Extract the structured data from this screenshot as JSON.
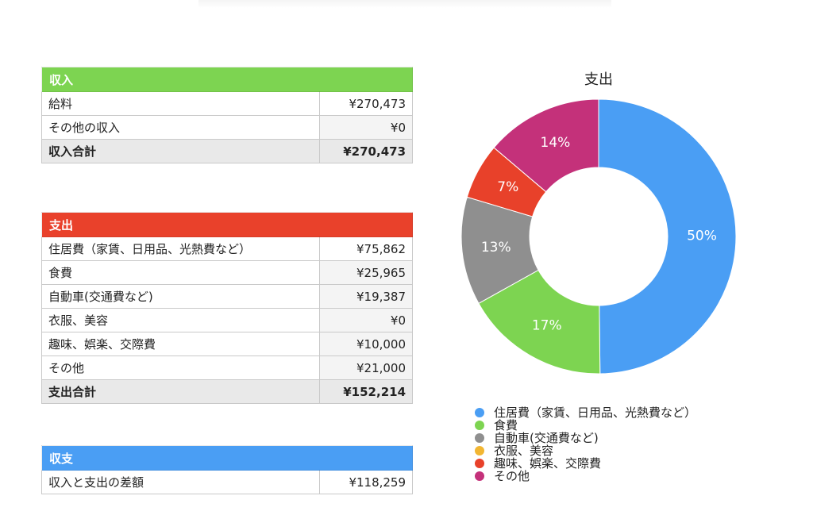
{
  "income": {
    "header": "収入",
    "rows": [
      {
        "label": "給料",
        "amount": "¥270,473"
      },
      {
        "label": "その他の収入",
        "amount": "¥0"
      }
    ],
    "total": {
      "label": "収入合計",
      "amount": "¥270,473"
    }
  },
  "expenses": {
    "header": "支出",
    "rows": [
      {
        "label": "住居費（家賃、日用品、光熱費など）",
        "amount": "¥75,862"
      },
      {
        "label": "食費",
        "amount": "¥25,965"
      },
      {
        "label": "自動車(交通費など)",
        "amount": "¥19,387"
      },
      {
        "label": "衣服、美容",
        "amount": "¥0"
      },
      {
        "label": "趣味、娯楽、交際費",
        "amount": "¥10,000"
      },
      {
        "label": "その他",
        "amount": "¥21,000"
      }
    ],
    "total": {
      "label": "支出合計",
      "amount": "¥152,214"
    }
  },
  "balance": {
    "header": "収支",
    "rows": [
      {
        "label": "収入と支出の差額",
        "amount": "¥118,259"
      }
    ]
  },
  "chart_data": {
    "type": "pie",
    "title": "支出",
    "categories": [
      "住居費（家賃、日用品、光熱費など）",
      "食費",
      "自動車(交通費など)",
      "衣服、美容",
      "趣味、娯楽、交際費",
      "その他"
    ],
    "values": [
      75862,
      25965,
      19387,
      0,
      10000,
      21000
    ],
    "percent_labels": [
      "50%",
      "17%",
      "13%",
      "",
      "7%",
      "14%"
    ],
    "colors": [
      "#4a9ef4",
      "#7dd451",
      "#8f8f8f",
      "#f2b632",
      "#e8412a",
      "#c4317a"
    ],
    "legend_position": "bottom-left",
    "donut": true
  },
  "colors": {
    "income_header": "#7dd451",
    "expense_header": "#e9412b",
    "balance_header": "#4a9ef4"
  }
}
